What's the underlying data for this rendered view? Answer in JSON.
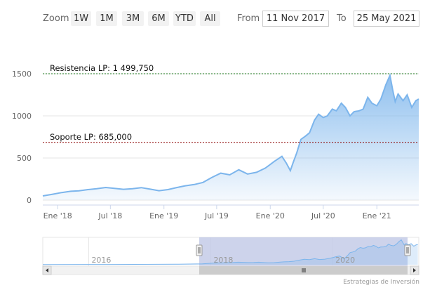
{
  "range_selector": {
    "zoom_label": "Zoom",
    "buttons": [
      "1W",
      "1M",
      "3M",
      "6M",
      "YTD",
      "All"
    ],
    "from_label": "From",
    "from_value": "11 Nov 2017",
    "to_label": "To",
    "to_value": "25 May 2021"
  },
  "credit": "Estrategias de Inversión",
  "colors": {
    "series_line": "#7cb5ec",
    "resistance_line": "#1a7a1a",
    "support_line": "#8b0000",
    "navigator_mask": "#c0c8e6"
  },
  "chart_data": {
    "type": "area",
    "yticks": [
      0,
      500,
      1000,
      1500
    ],
    "ylim": [
      0,
      1500
    ],
    "xlim": [
      "2017-11-11",
      "2021-05-25"
    ],
    "xtick_labels": [
      "Ene '18",
      "Jul '18",
      "Ene '19",
      "Jul '19",
      "Ene '20",
      "Jul '20",
      "Ene '21"
    ],
    "xtick_dates": [
      "2018-01-01",
      "2018-07-01",
      "2019-01-01",
      "2019-07-01",
      "2020-01-01",
      "2020-07-01",
      "2021-01-01"
    ],
    "grid": "horizontal",
    "plot_lines": [
      {
        "label": "Resistencia LP: 1 499,750",
        "value": 1499.75
      },
      {
        "label": "Soporte LP: 685,000",
        "value": 685
      }
    ],
    "series": [
      {
        "x": [
          "2017-11-11",
          "2017-12-15",
          "2018-01-15",
          "2018-02-15",
          "2018-03-15",
          "2018-04-15",
          "2018-05-15",
          "2018-06-15",
          "2018-07-15",
          "2018-08-15",
          "2018-09-15",
          "2018-10-15",
          "2018-11-15",
          "2018-12-15",
          "2019-01-15",
          "2019-02-15",
          "2019-03-15",
          "2019-04-15",
          "2019-05-15",
          "2019-06-15",
          "2019-07-15",
          "2019-08-15",
          "2019-09-15",
          "2019-10-15",
          "2019-11-15",
          "2019-12-15",
          "2020-01-15",
          "2020-02-10",
          "2020-02-25",
          "2020-03-10",
          "2020-03-20",
          "2020-04-01",
          "2020-04-15",
          "2020-05-01",
          "2020-05-15",
          "2020-06-01",
          "2020-06-15",
          "2020-07-01",
          "2020-07-15",
          "2020-08-01",
          "2020-08-15",
          "2020-09-01",
          "2020-09-15",
          "2020-10-01",
          "2020-10-15",
          "2020-11-01",
          "2020-11-15",
          "2020-12-01",
          "2020-12-15",
          "2021-01-01",
          "2021-01-15",
          "2021-02-01",
          "2021-02-15",
          "2021-02-25",
          "2021-03-05",
          "2021-03-15",
          "2021-04-01",
          "2021-04-15",
          "2021-05-01",
          "2021-05-15",
          "2021-05-25"
        ],
        "values": [
          50,
          70,
          90,
          105,
          110,
          125,
          135,
          150,
          140,
          128,
          135,
          148,
          130,
          112,
          125,
          150,
          170,
          185,
          210,
          270,
          320,
          300,
          360,
          310,
          330,
          380,
          460,
          520,
          440,
          350,
          450,
          560,
          720,
          760,
          800,
          950,
          1020,
          980,
          1000,
          1080,
          1060,
          1150,
          1100,
          1000,
          1050,
          1060,
          1080,
          1220,
          1150,
          1120,
          1200,
          1370,
          1480,
          1300,
          1170,
          1260,
          1180,
          1250,
          1100,
          1180,
          1200
        ]
      }
    ],
    "navigator": {
      "labels": [
        "2016",
        "2018",
        "2020"
      ]
    }
  }
}
